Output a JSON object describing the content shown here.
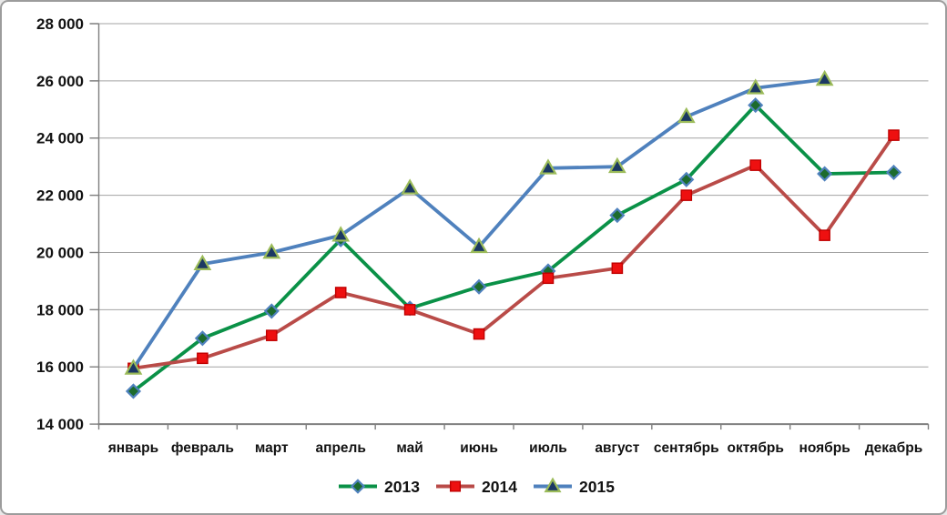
{
  "chart_data": {
    "type": "line",
    "categories": [
      "январь",
      "февраль",
      "март",
      "апрель",
      "май",
      "июнь",
      "июль",
      "август",
      "сентябрь",
      "октябрь",
      "ноябрь",
      "декабрь"
    ],
    "series": [
      {
        "name": "2013",
        "marker": "diamond",
        "line_color": "#0a9147",
        "marker_fill": "#1c6b2d",
        "marker_border": "#4f81bd",
        "values": [
          15150,
          17000,
          17950,
          20450,
          18050,
          18800,
          19350,
          21300,
          22550,
          25150,
          22750,
          22800
        ]
      },
      {
        "name": "2014",
        "marker": "square",
        "line_color": "#b94b48",
        "marker_fill": "#ee1010",
        "marker_border": "#c00000",
        "values": [
          15950,
          16300,
          17100,
          18600,
          18000,
          17150,
          19100,
          19450,
          22000,
          23050,
          20600,
          24100
        ]
      },
      {
        "name": "2015",
        "marker": "triangle",
        "line_color": "#4f81bd",
        "marker_fill": "#1b3863",
        "marker_border": "#9bbb59",
        "values": [
          15950,
          19600,
          20000,
          20600,
          22250,
          20200,
          22950,
          23000,
          24750,
          25750,
          26050,
          null
        ]
      }
    ],
    "ylim": [
      14000,
      28000
    ],
    "ytick_step": 2000,
    "ytick_labels": [
      "14 000",
      "16 000",
      "18 000",
      "20 000",
      "22 000",
      "24 000",
      "26 000",
      "28 000"
    ],
    "grid": true,
    "legend_position": "bottom",
    "colors": {
      "grid": "#a3a3a3",
      "axis": "#7f7f7f",
      "text": "#121212",
      "background": "#ffffff"
    }
  }
}
